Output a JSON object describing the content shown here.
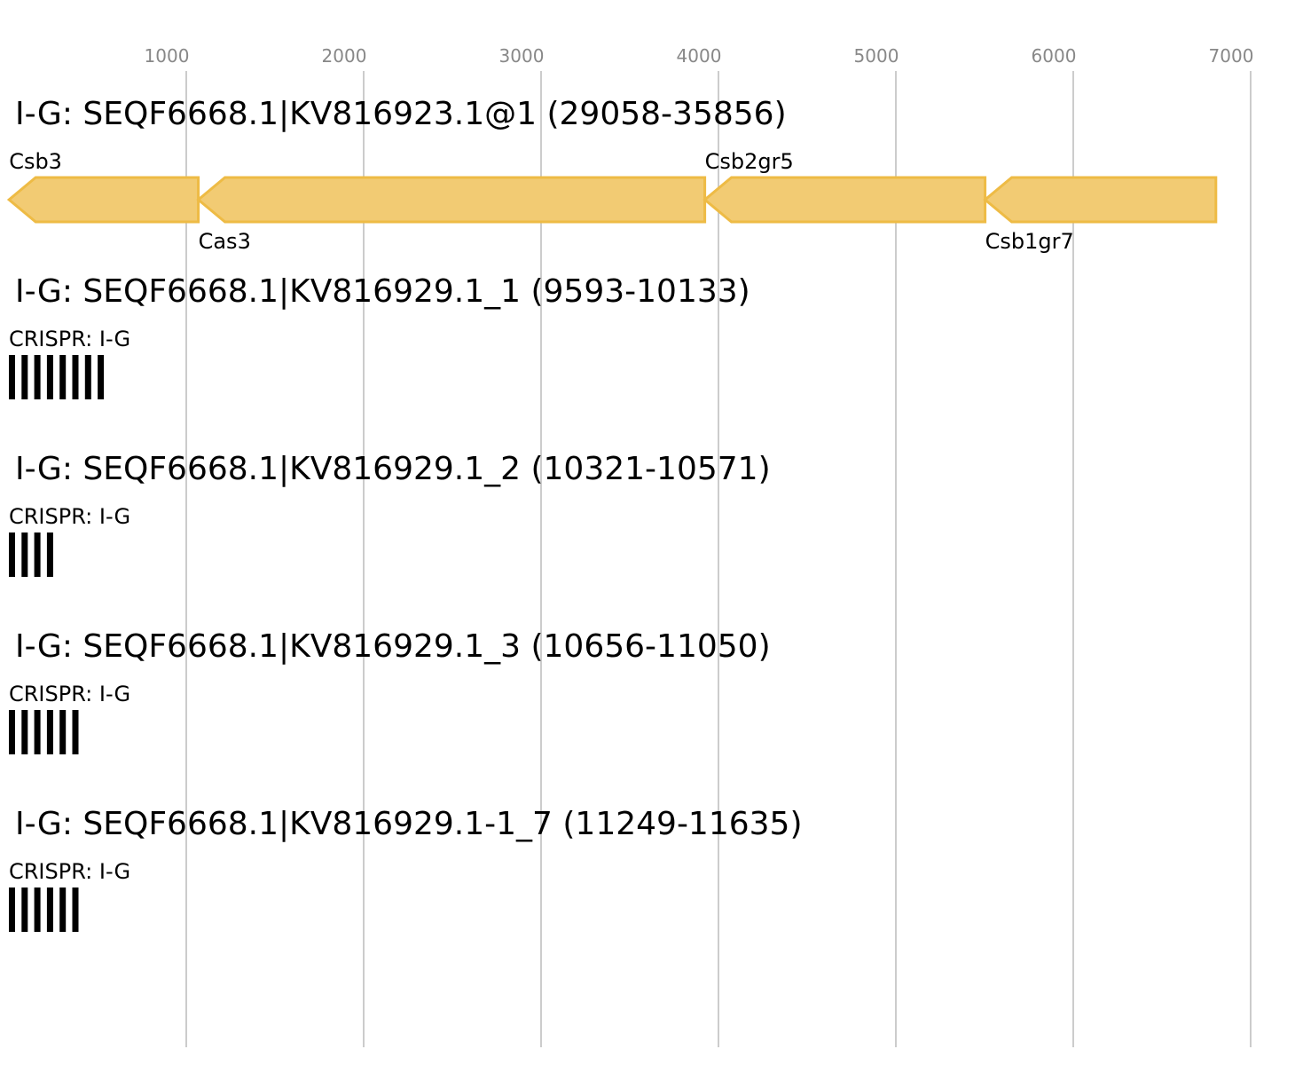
{
  "colors": {
    "gene_fill": "#f2cb73",
    "gene_stroke": "#eebb45",
    "grid": "#bbbbbb",
    "tick_text": "#888888",
    "crispr_repeat": "#000000"
  },
  "axis": {
    "ticks": [
      1000,
      2000,
      3000,
      4000,
      5000,
      6000,
      7000
    ],
    "tick_labels": [
      "1000",
      "2000",
      "3000",
      "4000",
      "5000",
      "6000",
      "7000"
    ]
  },
  "tracks": [
    {
      "title": "I-G: SEQF6668.1|KV816923.1@1 (29058-35856)",
      "type": "genes",
      "genes": [
        {
          "name": "Csb3",
          "start": 1,
          "end": 1068,
          "strand": "-",
          "label_pos": "above"
        },
        {
          "name": "Cas3",
          "start": 1068,
          "end": 3923,
          "strand": "-",
          "label_pos": "below"
        },
        {
          "name": "Csb2gr5",
          "start": 3923,
          "end": 5503,
          "strand": "-",
          "label_pos": "above"
        },
        {
          "name": "Csb1gr7",
          "start": 5503,
          "end": 6804,
          "strand": "-",
          "label_pos": "below"
        }
      ]
    },
    {
      "title": "I-G: SEQF6668.1|KV816929.1_1 (9593-10133)",
      "type": "crispr",
      "label": "CRISPR: I-G",
      "repeats": 8
    },
    {
      "title": "I-G: SEQF6668.1|KV816929.1_2 (10321-10571)",
      "type": "crispr",
      "label": "CRISPR: I-G",
      "repeats": 4
    },
    {
      "title": "I-G: SEQF6668.1|KV816929.1_3 (10656-11050)",
      "type": "crispr",
      "label": "CRISPR: I-G",
      "repeats": 6
    },
    {
      "title": "I-G: SEQF6668.1|KV816929.1-1_7 (11249-11635)",
      "type": "crispr",
      "label": "CRISPR: I-G",
      "repeats": 6
    }
  ]
}
